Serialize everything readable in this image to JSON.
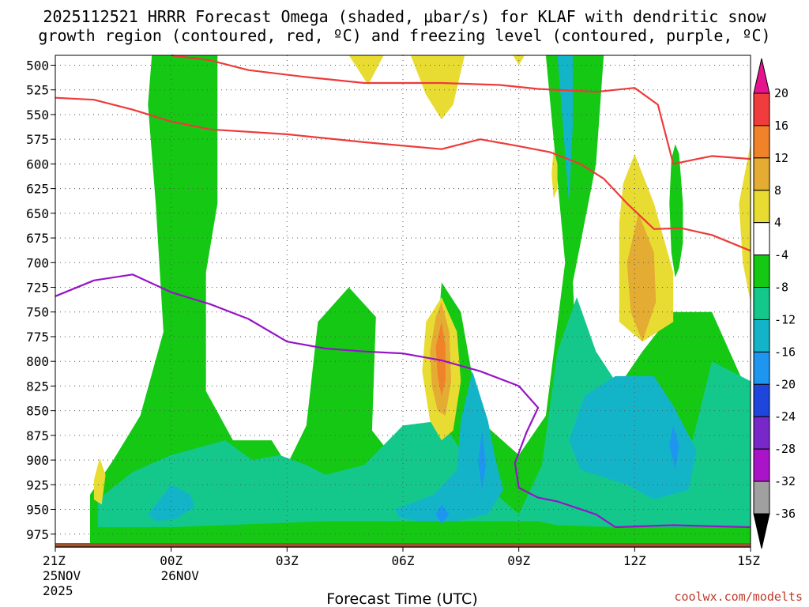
{
  "chart_data": {
    "type": "heatmap",
    "title_line1": "2025112521 HRRR Forecast Omega (shaded, μbar/s) for KLAF with dendritic snow",
    "title_line2": "growth region (contoured, red, ºC) and freezing level (contoured, purple, ºC)",
    "xlabel": "Forecast Time (UTC)",
    "ylabel": "",
    "credit": "coolwx.com/modelts",
    "x_range_hours": [
      0,
      18
    ],
    "y_range_hPa": [
      490,
      988
    ],
    "y_ticks": [
      500,
      525,
      550,
      575,
      600,
      625,
      650,
      675,
      700,
      725,
      750,
      775,
      800,
      825,
      850,
      875,
      900,
      925,
      950,
      975
    ],
    "x_ticks": [
      {
        "hour": 0,
        "label": "21Z",
        "sub1": "25NOV",
        "sub2": "2025"
      },
      {
        "hour": 3,
        "label": "00Z",
        "sub1": "26NOV",
        "sub2": ""
      },
      {
        "hour": 6,
        "label": "03Z",
        "sub1": "",
        "sub2": ""
      },
      {
        "hour": 9,
        "label": "06Z",
        "sub1": "",
        "sub2": ""
      },
      {
        "hour": 12,
        "label": "09Z",
        "sub1": "",
        "sub2": ""
      },
      {
        "hour": 15,
        "label": "12Z",
        "sub1": "",
        "sub2": ""
      },
      {
        "hour": 18,
        "label": "15Z",
        "sub1": "",
        "sub2": ""
      }
    ],
    "colorbar": {
      "labels": [
        "20",
        "16",
        "12",
        "8",
        "4",
        "-4",
        "-8",
        "-12",
        "-16",
        "-20",
        "-24",
        "-28",
        "-32",
        "-36"
      ],
      "segments": [
        {
          "color": "#f03c3c"
        },
        {
          "color": "#f0822a"
        },
        {
          "color": "#e4ac32"
        },
        {
          "color": "#e8dc32"
        },
        {
          "color": "#ffffff"
        },
        {
          "color": "#14c814"
        },
        {
          "color": "#14c88c"
        },
        {
          "color": "#14b4c8"
        },
        {
          "color": "#1e96f0"
        },
        {
          "color": "#1e46dc"
        },
        {
          "color": "#7828c8"
        },
        {
          "color": "#aa14c8"
        },
        {
          "color": "#a0a0a0"
        }
      ],
      "top_arrow_color": "#e6148c",
      "bottom_arrow_color": "#000000"
    },
    "ground_color": "#a0522d",
    "shaded_regions": [
      {
        "level": "-4",
        "color": "#14c814",
        "points": [
          [
            0.9,
            935
          ],
          [
            1.5,
            900
          ],
          [
            2.2,
            855
          ],
          [
            2.8,
            770
          ],
          [
            2.6,
            640
          ],
          [
            2.4,
            540
          ],
          [
            2.5,
            490
          ],
          [
            4.2,
            490
          ],
          [
            4.2,
            640
          ],
          [
            3.9,
            710
          ],
          [
            3.9,
            830
          ],
          [
            4.6,
            880
          ],
          [
            5.6,
            880
          ],
          [
            6.0,
            905
          ],
          [
            6.5,
            865
          ],
          [
            6.8,
            760
          ],
          [
            7.6,
            725
          ],
          [
            8.3,
            755
          ],
          [
            8.2,
            870
          ],
          [
            9.0,
            910
          ],
          [
            9.7,
            910
          ],
          [
            9.8,
            830
          ],
          [
            10.0,
            720
          ],
          [
            10.5,
            750
          ],
          [
            11.0,
            860
          ],
          [
            12.0,
            895
          ],
          [
            12.7,
            855
          ],
          [
            13.2,
            700
          ],
          [
            12.7,
            490
          ],
          [
            14.2,
            490
          ],
          [
            14.0,
            600
          ],
          [
            13.4,
            720
          ],
          [
            13.5,
            800
          ],
          [
            14.5,
            830
          ],
          [
            15.2,
            790
          ],
          [
            16.0,
            750
          ],
          [
            17.0,
            750
          ],
          [
            17.8,
            820
          ],
          [
            18,
            840
          ],
          [
            18,
            985
          ],
          [
            0.9,
            985
          ],
          [
            0.9,
            960
          ]
        ]
      },
      {
        "level": "-4",
        "color": "#14c814",
        "points": [
          [
            16.05,
            580
          ],
          [
            16.15,
            590
          ],
          [
            16.25,
            640
          ],
          [
            16.25,
            680
          ],
          [
            16.15,
            705
          ],
          [
            16.05,
            715
          ],
          [
            15.95,
            690
          ],
          [
            15.9,
            640
          ],
          [
            15.95,
            595
          ]
        ]
      },
      {
        "level": "-8",
        "color": "#14c88c",
        "points": [
          [
            1.1,
            940
          ],
          [
            2.0,
            912
          ],
          [
            3.0,
            895
          ],
          [
            4.4,
            880
          ],
          [
            5.1,
            900
          ],
          [
            5.8,
            895
          ],
          [
            6.5,
            905
          ],
          [
            7.0,
            915
          ],
          [
            8.0,
            905
          ],
          [
            9.0,
            865
          ],
          [
            10.0,
            860
          ],
          [
            11.0,
            920
          ],
          [
            12.0,
            955
          ],
          [
            12.6,
            905
          ],
          [
            13.0,
            790
          ],
          [
            13.5,
            735
          ],
          [
            14.0,
            790
          ],
          [
            14.5,
            820
          ],
          [
            15.0,
            855
          ],
          [
            16.0,
            860
          ],
          [
            16.5,
            880
          ],
          [
            17.0,
            800
          ],
          [
            18,
            820
          ],
          [
            18,
            968
          ],
          [
            14.5,
            968
          ],
          [
            13.0,
            966
          ],
          [
            12.5,
            962
          ],
          [
            10.0,
            962
          ],
          [
            7.0,
            962
          ],
          [
            3.0,
            968
          ],
          [
            1.1,
            968
          ]
        ]
      },
      {
        "level": "-12",
        "color": "#14b4c8",
        "points": [
          [
            2.4,
            955
          ],
          [
            3.0,
            925
          ],
          [
            3.5,
            935
          ],
          [
            3.6,
            948
          ],
          [
            3.1,
            960
          ],
          [
            2.6,
            962
          ]
        ]
      },
      {
        "level": "-12",
        "color": "#14b4c8",
        "points": [
          [
            8.8,
            950
          ],
          [
            9.8,
            935
          ],
          [
            10.4,
            910
          ],
          [
            10.5,
            860
          ],
          [
            10.8,
            810
          ],
          [
            11.2,
            860
          ],
          [
            11.4,
            900
          ],
          [
            11.6,
            930
          ],
          [
            11.2,
            955
          ],
          [
            10.4,
            962
          ],
          [
            9.4,
            962
          ],
          [
            8.9,
            958
          ]
        ]
      },
      {
        "level": "-12",
        "color": "#14b4c8",
        "points": [
          [
            13.3,
            880
          ],
          [
            13.7,
            835
          ],
          [
            14.5,
            815
          ],
          [
            15.5,
            815
          ],
          [
            16.0,
            845
          ],
          [
            16.6,
            890
          ],
          [
            16.4,
            930
          ],
          [
            15.5,
            940
          ],
          [
            14.8,
            925
          ],
          [
            13.6,
            910
          ]
        ]
      },
      {
        "level": "-12",
        "color": "#14b4c8",
        "points": [
          [
            13.0,
            490
          ],
          [
            13.4,
            490
          ],
          [
            13.4,
            560
          ],
          [
            13.3,
            640
          ],
          [
            13.15,
            565
          ]
        ]
      },
      {
        "level": "-16",
        "color": "#1e96f0",
        "points": [
          [
            9.85,
            955
          ],
          [
            10.0,
            945
          ],
          [
            10.2,
            955
          ],
          [
            10.0,
            965
          ]
        ]
      },
      {
        "level": "-16",
        "color": "#1e96f0",
        "points": [
          [
            10.95,
            902
          ],
          [
            11.05,
            870
          ],
          [
            11.15,
            905
          ],
          [
            11.05,
            930
          ]
        ]
      },
      {
        "level": "-16",
        "color": "#1e96f0",
        "points": [
          [
            15.9,
            885
          ],
          [
            16.0,
            865
          ],
          [
            16.15,
            885
          ],
          [
            16.05,
            910
          ]
        ]
      },
      {
        "level": "4",
        "color": "#e8dc32",
        "points": [
          [
            1.0,
            920
          ],
          [
            1.15,
            898
          ],
          [
            1.3,
            915
          ],
          [
            1.2,
            945
          ],
          [
            1.0,
            940
          ]
        ]
      },
      {
        "level": "4",
        "color": "#e8dc32",
        "points": [
          [
            7.6,
            490
          ],
          [
            8.5,
            490
          ],
          [
            8.1,
            520
          ]
        ]
      },
      {
        "level": "4",
        "color": "#e8dc32",
        "points": [
          [
            9.2,
            490
          ],
          [
            10.6,
            490
          ],
          [
            10.3,
            540
          ],
          [
            10.0,
            555
          ],
          [
            9.6,
            530
          ]
        ]
      },
      {
        "level": "4",
        "color": "#e8dc32",
        "points": [
          [
            11.85,
            490
          ],
          [
            12.15,
            490
          ],
          [
            12.0,
            500
          ]
        ]
      },
      {
        "level": "4",
        "color": "#e8dc32",
        "points": [
          [
            12.9,
            585
          ],
          [
            13.0,
            600
          ],
          [
            13.0,
            625
          ],
          [
            12.9,
            635
          ],
          [
            12.85,
            610
          ]
        ]
      },
      {
        "level": "4",
        "color": "#e8dc32",
        "points": [
          [
            14.7,
            620
          ],
          [
            15.0,
            590
          ],
          [
            15.5,
            640
          ],
          [
            16.0,
            710
          ],
          [
            16.0,
            760
          ],
          [
            15.2,
            780
          ],
          [
            14.6,
            760
          ],
          [
            14.6,
            660
          ]
        ]
      },
      {
        "level": "4",
        "color": "#e8dc32",
        "points": [
          [
            9.5,
            810
          ],
          [
            9.6,
            760
          ],
          [
            10.0,
            735
          ],
          [
            10.4,
            770
          ],
          [
            10.5,
            820
          ],
          [
            10.3,
            870
          ],
          [
            10.0,
            880
          ],
          [
            9.7,
            860
          ]
        ]
      },
      {
        "level": "4",
        "color": "#e8dc32",
        "points": [
          [
            18,
            580
          ],
          [
            17.7,
            640
          ],
          [
            17.8,
            700
          ],
          [
            18,
            740
          ]
        ]
      },
      {
        "level": "8",
        "color": "#e4ac32",
        "points": [
          [
            14.8,
            700
          ],
          [
            15.1,
            650
          ],
          [
            15.5,
            690
          ],
          [
            15.55,
            740
          ],
          [
            15.2,
            780
          ],
          [
            14.9,
            750
          ]
        ]
      },
      {
        "level": "8",
        "color": "#e4ac32",
        "points": [
          [
            9.7,
            790
          ],
          [
            9.85,
            755
          ],
          [
            10.0,
            740
          ],
          [
            10.2,
            770
          ],
          [
            10.25,
            820
          ],
          [
            10.1,
            855
          ],
          [
            9.9,
            850
          ],
          [
            9.75,
            825
          ]
        ]
      },
      {
        "level": "12",
        "color": "#f0822a",
        "points": [
          [
            9.85,
            785
          ],
          [
            10.0,
            760
          ],
          [
            10.1,
            785
          ],
          [
            10.1,
            820
          ],
          [
            10.0,
            835
          ],
          [
            9.9,
            815
          ]
        ]
      }
    ],
    "contours": [
      {
        "name": "dgz-upper-red",
        "color": "#ee3a3a",
        "points": [
          [
            3.0,
            490
          ],
          [
            4.0,
            495
          ],
          [
            5.0,
            505
          ],
          [
            6.5,
            512
          ],
          [
            8.0,
            518
          ],
          [
            10.0,
            518
          ],
          [
            11.5,
            520
          ],
          [
            12.5,
            524
          ],
          [
            14.0,
            527
          ],
          [
            15.0,
            523
          ],
          [
            15.6,
            540
          ],
          [
            16.0,
            600
          ],
          [
            17.0,
            592
          ],
          [
            18,
            595
          ]
        ]
      },
      {
        "name": "dgz-lower-red",
        "color": "#ee3a3a",
        "points": [
          [
            0,
            533
          ],
          [
            1.0,
            535
          ],
          [
            2.0,
            545
          ],
          [
            3.0,
            557
          ],
          [
            4.0,
            565
          ],
          [
            6.0,
            570
          ],
          [
            8.0,
            578
          ],
          [
            10.0,
            585
          ],
          [
            11.0,
            575
          ],
          [
            12.0,
            582
          ],
          [
            12.8,
            588
          ],
          [
            13.6,
            600
          ],
          [
            14.2,
            615
          ],
          [
            14.8,
            640
          ],
          [
            15.5,
            666
          ],
          [
            16.2,
            665
          ],
          [
            17.0,
            672
          ],
          [
            18,
            688
          ]
        ]
      },
      {
        "name": "freezing-level-purple",
        "color": "#9614c8",
        "points": [
          [
            0,
            734
          ],
          [
            1.0,
            718
          ],
          [
            2.0,
            712
          ],
          [
            3.0,
            730
          ],
          [
            4.0,
            742
          ],
          [
            5.0,
            757
          ],
          [
            6.0,
            780
          ],
          [
            7.0,
            787
          ],
          [
            8.0,
            790
          ],
          [
            9.0,
            792
          ],
          [
            10.0,
            799
          ],
          [
            11.0,
            810
          ],
          [
            12.0,
            825
          ],
          [
            12.5,
            847
          ],
          [
            12.2,
            872
          ],
          [
            11.9,
            903
          ],
          [
            12.0,
            928
          ],
          [
            12.5,
            938
          ],
          [
            13.0,
            942
          ],
          [
            14.0,
            955
          ],
          [
            14.5,
            968
          ],
          [
            16.0,
            966
          ],
          [
            17.0,
            967
          ],
          [
            18,
            968
          ]
        ]
      }
    ]
  }
}
